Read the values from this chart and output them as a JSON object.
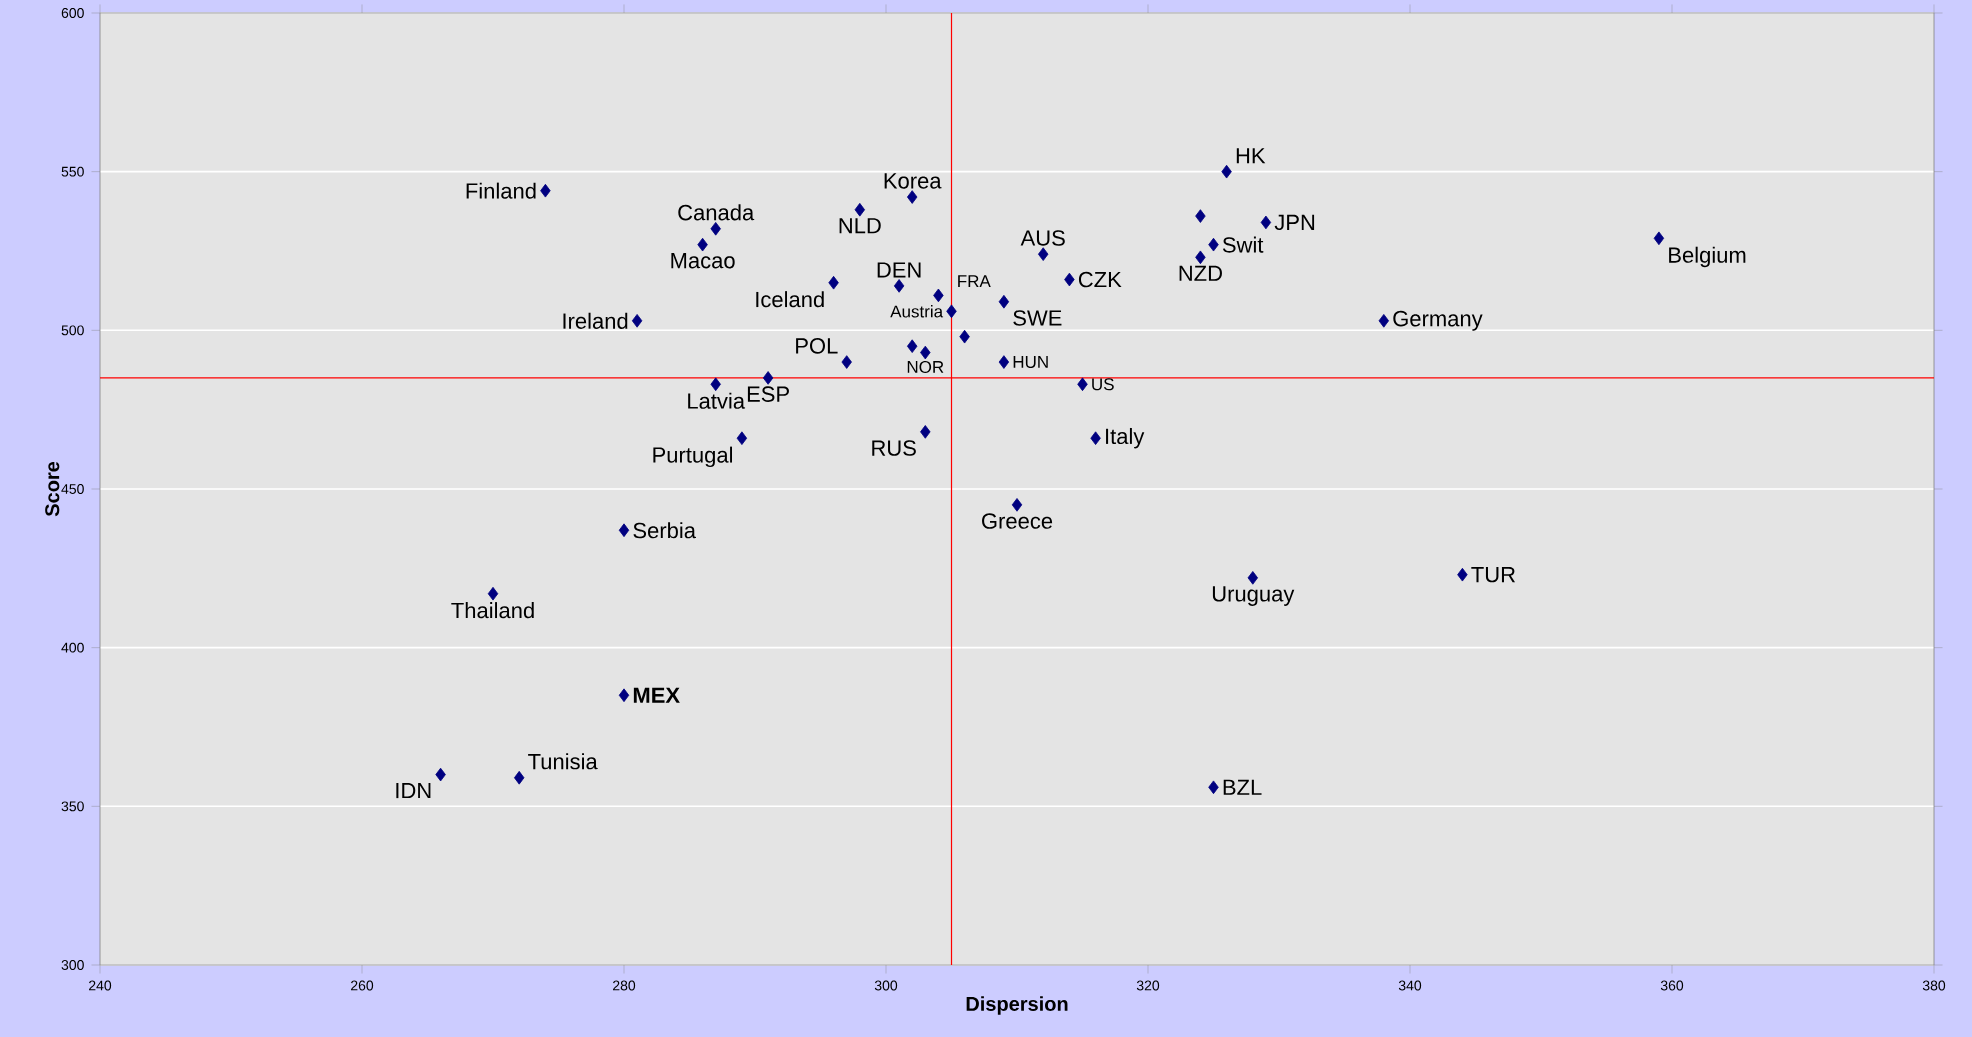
{
  "chart_data": {
    "type": "scatter",
    "xlabel": "Dispersion",
    "ylabel": "Score",
    "series": [
      {
        "color": "#000080",
        "x": [
          274,
          287,
          286,
          298,
          302,
          296,
          301,
          304,
          305,
          309,
          281,
          312,
          314,
          324,
          326,
          329,
          325,
          359,
          338,
          315,
          287,
          291,
          297,
          309,
          303,
          289,
          303,
          316,
          310,
          280,
          270,
          328,
          344,
          280,
          266,
          272,
          325,
          302,
          306,
          324
        ],
        "values": [
          544,
          532,
          527,
          538,
          542,
          515,
          514,
          511,
          506,
          509,
          503,
          524,
          516,
          523,
          550,
          534,
          527,
          529,
          503,
          483,
          483,
          485,
          490,
          490,
          493,
          466,
          468,
          466,
          445,
          437,
          417,
          422,
          423,
          385,
          360,
          359,
          356,
          495,
          498,
          536
        ]
      }
    ],
    "marker": "diamond",
    "grid": "y",
    "xlim": [
      240,
      380
    ],
    "ylim": [
      300,
      600
    ],
    "xticks": [
      240,
      260,
      280,
      300,
      320,
      340,
      360,
      380
    ],
    "yticks": [
      300,
      350,
      400,
      450,
      500,
      550,
      600
    ],
    "ref_lines": [
      {
        "axis": "x",
        "value": 305,
        "color": "#ff0000"
      },
      {
        "axis": "y",
        "value": 485,
        "color": "#ff0000"
      }
    ],
    "annotations": [
      {
        "text": "Finland",
        "x": 274,
        "y": 544
      },
      {
        "text": "Canada",
        "x": 287,
        "y": 532
      },
      {
        "text": "Macao",
        "x": 286,
        "y": 527
      },
      {
        "text": "NLD",
        "x": 298,
        "y": 538
      },
      {
        "text": "Korea",
        "x": 302,
        "y": 542
      },
      {
        "text": "Iceland",
        "x": 296,
        "y": 515
      },
      {
        "text": "DEN",
        "x": 301,
        "y": 514
      },
      {
        "text": "FRA",
        "x": 304,
        "y": 511
      },
      {
        "text": "Austria",
        "x": 305,
        "y": 506
      },
      {
        "text": "SWE",
        "x": 309,
        "y": 509
      },
      {
        "text": "Ireland",
        "x": 281,
        "y": 503
      },
      {
        "text": "AUS",
        "x": 312,
        "y": 524
      },
      {
        "text": "CZK",
        "x": 314,
        "y": 516
      },
      {
        "text": "NZD",
        "x": 324,
        "y": 523
      },
      {
        "text": "HK",
        "x": 326,
        "y": 550
      },
      {
        "text": "JPN",
        "x": 329,
        "y": 534
      },
      {
        "text": "Swit",
        "x": 325,
        "y": 527
      },
      {
        "text": "Belgium",
        "x": 359,
        "y": 529
      },
      {
        "text": "Germany",
        "x": 338,
        "y": 503
      },
      {
        "text": "US",
        "x": 315,
        "y": 483
      },
      {
        "text": "Latvia",
        "x": 287,
        "y": 483
      },
      {
        "text": "ESP",
        "x": 291,
        "y": 485
      },
      {
        "text": "POL",
        "x": 297,
        "y": 490
      },
      {
        "text": "HUN",
        "x": 309,
        "y": 490
      },
      {
        "text": "NOR",
        "x": 303,
        "y": 493
      },
      {
        "text": "Purtugal",
        "x": 289,
        "y": 466
      },
      {
        "text": "RUS",
        "x": 303,
        "y": 468
      },
      {
        "text": "Italy",
        "x": 316,
        "y": 466
      },
      {
        "text": "Greece",
        "x": 310,
        "y": 445
      },
      {
        "text": "Serbia",
        "x": 280,
        "y": 437
      },
      {
        "text": "Thailand",
        "x": 270,
        "y": 417
      },
      {
        "text": "Uruguay",
        "x": 328,
        "y": 422
      },
      {
        "text": "TUR",
        "x": 344,
        "y": 423
      },
      {
        "text": "MEX",
        "x": 280,
        "y": 385
      },
      {
        "text": "IDN",
        "x": 266,
        "y": 360
      },
      {
        "text": "Tunisia",
        "x": 272,
        "y": 359
      },
      {
        "text": "BZL",
        "x": 325,
        "y": 356
      }
    ]
  }
}
